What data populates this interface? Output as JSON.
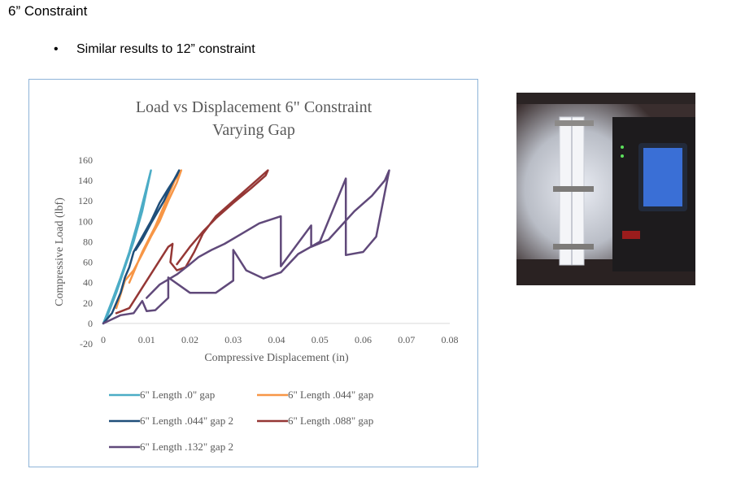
{
  "slide": {
    "heading": "6” Constraint",
    "bullet": "Similar results to 12” constraint"
  },
  "colors": {
    "frame": "#8eb4d8",
    "text": "#595959",
    "axis": "#d9d9d9"
  },
  "chart_data": {
    "type": "line",
    "title": "Load vs Displacement 6\" Constraint Varying Gap",
    "title_lines": [
      "Load vs Displacement 6\" Constraint",
      "Varying Gap"
    ],
    "xlabel": "Compressive Displacement (in)",
    "ylabel": "Compressive Load (lbf)",
    "xlim": [
      0,
      0.08
    ],
    "ylim": [
      -20,
      160
    ],
    "xticks": [
      0,
      0.01,
      0.02,
      0.03,
      0.04,
      0.05,
      0.06,
      0.07,
      0.08
    ],
    "xtick_labels": [
      "0",
      "0.01",
      "0.02",
      "0.03",
      "0.04",
      "0.05",
      "0.06",
      "0.07",
      "0.08"
    ],
    "yticks": [
      -20,
      0,
      20,
      40,
      60,
      80,
      100,
      120,
      140,
      160
    ],
    "ytick_labels": [
      "-20",
      "0",
      "20",
      "40",
      "60",
      "80",
      "100",
      "120",
      "140",
      "160"
    ],
    "grid": false,
    "legend": "bottom",
    "series": [
      {
        "name": "6\" Length .0\" gap",
        "color": "#4bacc6",
        "x": [
          0,
          0.002,
          0.004,
          0.006,
          0.008,
          0.0095,
          0.011,
          0.0105,
          0.009,
          0.007,
          0.005,
          0.003,
          0.001,
          0
        ],
        "y": [
          0,
          22,
          45,
          70,
          100,
          125,
          150,
          140,
          110,
          80,
          55,
          30,
          8,
          0
        ]
      },
      {
        "name": "6\" Length .044\" gap",
        "color": "#f79646",
        "x": [
          0.003,
          0.005,
          0.007,
          0.009,
          0.011,
          0.013,
          0.015,
          0.017,
          0.018,
          0.0165,
          0.014,
          0.012,
          0.009,
          0.007,
          0.006
        ],
        "y": [
          15,
          42,
          52,
          68,
          85,
          100,
          120,
          138,
          150,
          140,
          115,
          95,
          70,
          50,
          40
        ]
      },
      {
        "name": "6\" Length .044\" gap 2",
        "color": "#1f4e79",
        "x": [
          0,
          0.002,
          0.004,
          0.005,
          0.006,
          0.007,
          0.009,
          0.011,
          0.013,
          0.015,
          0.017,
          0.0175,
          0.016,
          0.014,
          0.011,
          0.009,
          0.0075
        ],
        "y": [
          0,
          10,
          30,
          45,
          55,
          70,
          85,
          100,
          118,
          132,
          145,
          150,
          138,
          120,
          98,
          82,
          72
        ]
      },
      {
        "name": "6\" Length .088\" gap",
        "color": "#953735",
        "x": [
          0.003,
          0.006,
          0.009,
          0.012,
          0.015,
          0.016,
          0.0155,
          0.017,
          0.019,
          0.021,
          0.023,
          0.026,
          0.03,
          0.034,
          0.038,
          0.0375,
          0.034,
          0.03,
          0.026,
          0.023,
          0.02,
          0.017
        ],
        "y": [
          10,
          15,
          35,
          55,
          75,
          78,
          60,
          52,
          55,
          70,
          88,
          105,
          120,
          135,
          150,
          145,
          132,
          118,
          103,
          90,
          75,
          58
        ]
      },
      {
        "name": "6\" Length .132\" gap 2",
        "color": "#60497a",
        "x": [
          0,
          0.004,
          0.007,
          0.009,
          0.01,
          0.012,
          0.015,
          0.015,
          0.02,
          0.026,
          0.03,
          0.03,
          0.033,
          0.037,
          0.041,
          0.045,
          0.05,
          0.056,
          0.056,
          0.06,
          0.063,
          0.066,
          0.065,
          0.062,
          0.058,
          0.052,
          0.048,
          0.048,
          0.041,
          0.041,
          0.036,
          0.032,
          0.028,
          0.025,
          0.022,
          0.02,
          0.017,
          0.013,
          0.01
        ],
        "y": [
          0,
          8,
          10,
          22,
          12,
          13,
          25,
          45,
          30,
          30,
          42,
          72,
          52,
          44,
          50,
          68,
          80,
          142,
          67,
          70,
          85,
          150,
          140,
          125,
          110,
          82,
          75,
          96,
          56,
          105,
          98,
          88,
          78,
          72,
          65,
          58,
          48,
          38,
          25
        ]
      }
    ]
  }
}
